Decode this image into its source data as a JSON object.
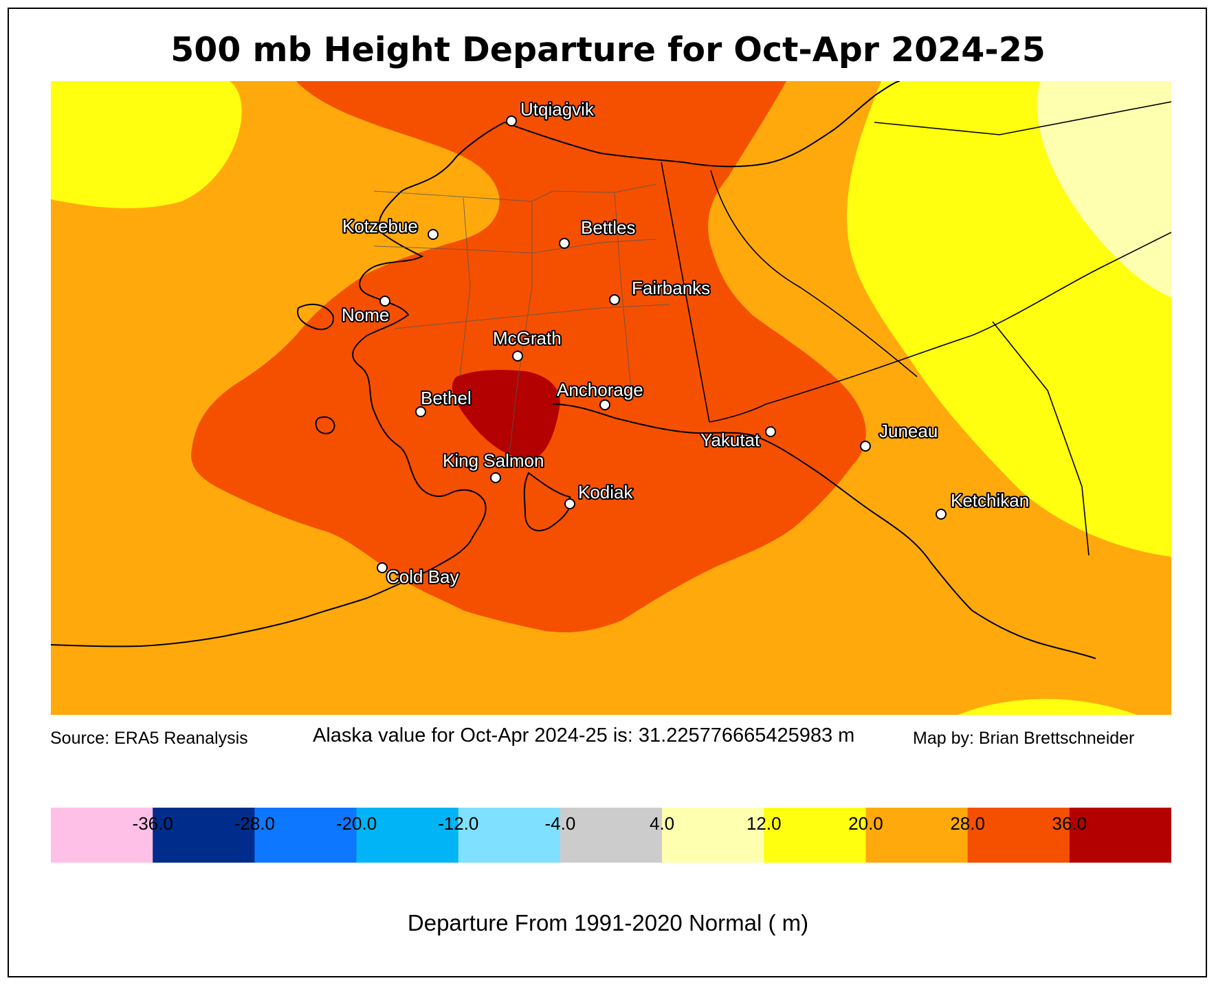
{
  "title": "500 mb Height Departure for Oct-Apr 2024-25",
  "source": "Source: ERA5 Reanalysis",
  "alaska_value": "Alaska value for Oct-Apr 2024-25 is: 31.225776665425983 m",
  "byline": "Map by: Brian Brettschneider",
  "colorbar": {
    "title": "Departure From 1991-2020 Normal ( m)",
    "ticks": [
      "-36.0",
      "-28.0",
      "-20.0",
      "-12.0",
      "-4.0",
      "4.0",
      "12.0",
      "20.0",
      "28.0",
      "36.0"
    ],
    "colors": [
      "#ffc0e8",
      "#002d8b",
      "#0d77ff",
      "#00b4f5",
      "#7fe0ff",
      "#cccccc",
      "#ffffb0",
      "#ffff0f",
      "#ffa90d",
      "#f55000",
      "#b30000"
    ]
  },
  "map": {
    "region": "Alaska",
    "field_colors": {
      "lt_12": "#ffffb0",
      "12_20": "#ffff0f",
      "20_28": "#ffa90d",
      "28_36": "#f55000",
      "gt_36": "#b30000"
    },
    "cities": [
      {
        "name": "Utqiaġvik"
      },
      {
        "name": "Kotzebue"
      },
      {
        "name": "Bettles"
      },
      {
        "name": "Fairbanks"
      },
      {
        "name": "Nome"
      },
      {
        "name": "McGrath"
      },
      {
        "name": "Bethel"
      },
      {
        "name": "Anchorage"
      },
      {
        "name": "Yakutat"
      },
      {
        "name": "Juneau"
      },
      {
        "name": "King Salmon"
      },
      {
        "name": "Kodiak"
      },
      {
        "name": "Ketchikan"
      },
      {
        "name": "Cold Bay"
      }
    ]
  }
}
